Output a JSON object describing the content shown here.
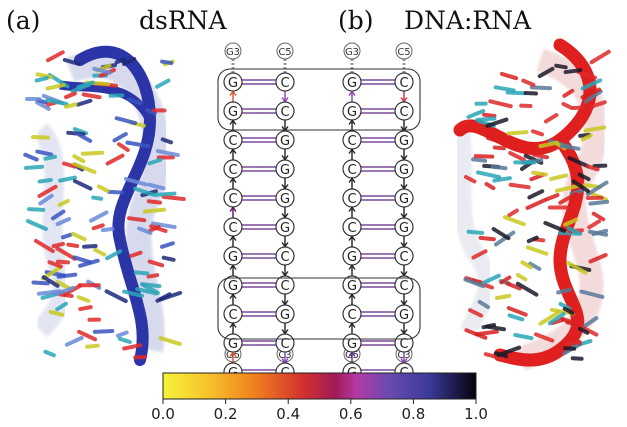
{
  "panels": {
    "a": {
      "label": "(a)",
      "title": "dsRNA"
    },
    "b": {
      "label": "(b)",
      "title": "DNA:RNA"
    }
  },
  "strands": {
    "a": {
      "left_end_top": "G3",
      "right_end_top": "C5",
      "left_end_bottom": "G5",
      "right_end_bottom": "C3",
      "left": [
        "G",
        "G",
        "C",
        "C",
        "C",
        "C",
        "G",
        "G",
        "C",
        "G",
        "G"
      ],
      "right": [
        "C",
        "C",
        "G",
        "G",
        "G",
        "G",
        "C",
        "C",
        "G",
        "C",
        "C"
      ]
    },
    "b": {
      "left_end_top": "G3",
      "right_end_top": "C5",
      "left_end_bottom": "G5",
      "right_end_bottom": "C3",
      "left": [
        "G",
        "G",
        "C",
        "C",
        "C",
        "C",
        "G",
        "G",
        "C",
        "G",
        "G"
      ],
      "right": [
        "C",
        "C",
        "G",
        "G",
        "G",
        "G",
        "C",
        "C",
        "G",
        "C",
        "C"
      ]
    }
  },
  "colorbar": {
    "ticks": [
      "0.0",
      "0.2",
      "0.4",
      "0.6",
      "0.8",
      "1.0"
    ],
    "colormap": "inferno-plasma (yellow → orange → red → purple → blue → black)"
  },
  "colors": {
    "dsRNA_ribbon": "#2c35a8",
    "dnarna_ribbon": "#e01f1f",
    "pair_line": "#7a4a9a",
    "box_stroke": "#333333"
  },
  "arrows": {
    "a_left": [
      {
        "dir": "up",
        "c": "#d8502a"
      },
      {
        "dir": "up",
        "c": "#222"
      },
      {
        "dir": "up",
        "c": "#222"
      },
      {
        "dir": "up",
        "c": "#222"
      },
      {
        "dir": "up",
        "c": "#5a1060"
      },
      {
        "dir": "up",
        "c": "#222"
      },
      {
        "dir": "up",
        "c": "#222"
      },
      {
        "dir": "up",
        "c": "#222"
      },
      {
        "dir": "up",
        "c": "#222"
      },
      {
        "dir": "up",
        "c": "#d8502a"
      }
    ],
    "a_right": [
      {
        "dir": "down",
        "c": "#8a40c0"
      },
      {
        "dir": "down",
        "c": "#222"
      },
      {
        "dir": "down",
        "c": "#222"
      },
      {
        "dir": "down",
        "c": "#222"
      },
      {
        "dir": "down",
        "c": "#222"
      },
      {
        "dir": "down",
        "c": "#222"
      },
      {
        "dir": "down",
        "c": "#222"
      },
      {
        "dir": "down",
        "c": "#222"
      },
      {
        "dir": "down",
        "c": "#222"
      },
      {
        "dir": "down",
        "c": "#8a40c0"
      }
    ],
    "b_left": [
      {
        "dir": "up",
        "c": "#8a40c0"
      },
      {
        "dir": "up",
        "c": "#222"
      },
      {
        "dir": "up",
        "c": "#222"
      },
      {
        "dir": "up",
        "c": "#222"
      },
      {
        "dir": "up",
        "c": "#222"
      },
      {
        "dir": "up",
        "c": "#222"
      },
      {
        "dir": "up",
        "c": "#222"
      },
      {
        "dir": "up",
        "c": "#222"
      },
      {
        "dir": "up",
        "c": "#222"
      },
      {
        "dir": "up",
        "c": "#5a2a9a"
      }
    ],
    "b_right": [
      {
        "dir": "down",
        "c": "#d02a3a"
      },
      {
        "dir": "down",
        "c": "#222"
      },
      {
        "dir": "down",
        "c": "#222"
      },
      {
        "dir": "down",
        "c": "#222"
      },
      {
        "dir": "down",
        "c": "#222"
      },
      {
        "dir": "down",
        "c": "#222"
      },
      {
        "dir": "down",
        "c": "#222"
      },
      {
        "dir": "down",
        "c": "#222"
      },
      {
        "dir": "down",
        "c": "#222"
      },
      {
        "dir": "down",
        "c": "#8a40c0"
      }
    ]
  }
}
